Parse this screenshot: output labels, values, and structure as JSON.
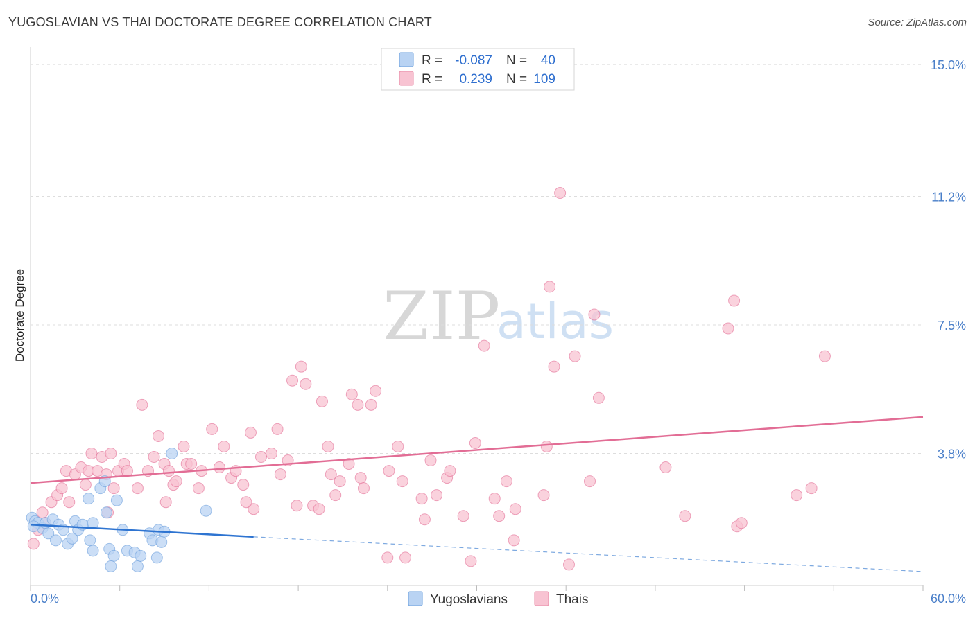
{
  "title": "YUGOSLAVIAN VS THAI DOCTORATE DEGREE CORRELATION CHART",
  "source": "Source: ZipAtlas.com",
  "watermark": {
    "zip": "ZIP",
    "atlas": "atlas"
  },
  "legend": {
    "r_label": "R =",
    "n_label": "N =",
    "entries": [
      {
        "r": "-0.087",
        "n": "40",
        "fill": "#b9d3f3",
        "stroke": "#6a9fdc"
      },
      {
        "r": "0.239",
        "n": "109",
        "fill": "#f8c3d2",
        "stroke": "#e88aa6"
      }
    ]
  },
  "bottom_legend": [
    {
      "label": "Yugoslavians",
      "fill": "#b9d3f3",
      "stroke": "#6a9fdc"
    },
    {
      "label": "Thais",
      "fill": "#f8c3d2",
      "stroke": "#e88aa6"
    }
  ],
  "chart_data": {
    "type": "scatter",
    "title": "YUGOSLAVIAN VS THAI DOCTORATE DEGREE CORRELATION CHART",
    "xlabel": "",
    "ylabel": "Doctorate Degree",
    "xlim": [
      0,
      60
    ],
    "ylim": [
      0,
      15.5
    ],
    "x_tick_labels": [
      {
        "value": 0,
        "label": "0.0%"
      },
      {
        "value": 60,
        "label": "60.0%"
      }
    ],
    "y_tick_labels": [
      {
        "value": 3.8,
        "label": "3.8%"
      },
      {
        "value": 7.5,
        "label": "7.5%"
      },
      {
        "value": 11.2,
        "label": "11.2%"
      },
      {
        "value": 15.0,
        "label": "15.0%"
      }
    ],
    "series": [
      {
        "name": "Yugoslavians",
        "color": "#6a9fdc",
        "fill": "#b9d3f3",
        "trend": {
          "x0": 0,
          "y0": 1.75,
          "x1": 15,
          "y1": 1.4,
          "dashed_to_x": 60,
          "dashed_to_y": 0.4
        },
        "points": [
          [
            0.1,
            1.95
          ],
          [
            0.3,
            1.85
          ],
          [
            0.5,
            1.8
          ],
          [
            0.8,
            1.65
          ],
          [
            1.0,
            1.8
          ],
          [
            1.2,
            1.5
          ],
          [
            1.5,
            1.9
          ],
          [
            1.7,
            1.3
          ],
          [
            1.9,
            1.75
          ],
          [
            2.2,
            1.6
          ],
          [
            2.5,
            1.2
          ],
          [
            3.0,
            1.85
          ],
          [
            3.2,
            1.6
          ],
          [
            3.5,
            1.75
          ],
          [
            4.0,
            1.3
          ],
          [
            4.2,
            1.0
          ],
          [
            3.9,
            2.5
          ],
          [
            4.2,
            1.8
          ],
          [
            4.7,
            2.8
          ],
          [
            5.0,
            3.0
          ],
          [
            5.1,
            2.1
          ],
          [
            5.3,
            1.05
          ],
          [
            5.6,
            0.85
          ],
          [
            5.4,
            0.55
          ],
          [
            5.8,
            2.45
          ],
          [
            6.2,
            1.6
          ],
          [
            6.5,
            1.0
          ],
          [
            7.0,
            0.95
          ],
          [
            7.2,
            0.55
          ],
          [
            7.4,
            0.85
          ],
          [
            8.0,
            1.5
          ],
          [
            8.2,
            1.3
          ],
          [
            8.5,
            0.8
          ],
          [
            8.6,
            1.6
          ],
          [
            8.8,
            1.25
          ],
          [
            9.0,
            1.55
          ],
          [
            9.5,
            3.8
          ],
          [
            11.8,
            2.15
          ],
          [
            0.2,
            1.7
          ],
          [
            2.8,
            1.35
          ]
        ]
      },
      {
        "name": "Thais",
        "color": "#e26d95",
        "fill": "#f8c3d2",
        "trend": {
          "x0": 0,
          "y0": 2.95,
          "x1": 60,
          "y1": 4.85
        },
        "points": [
          [
            0.2,
            1.2
          ],
          [
            0.5,
            1.6
          ],
          [
            0.8,
            2.1
          ],
          [
            1.0,
            1.8
          ],
          [
            1.4,
            2.4
          ],
          [
            1.8,
            2.6
          ],
          [
            2.1,
            2.8
          ],
          [
            2.4,
            3.3
          ],
          [
            2.6,
            2.4
          ],
          [
            3.0,
            3.2
          ],
          [
            3.4,
            3.4
          ],
          [
            3.9,
            3.3
          ],
          [
            4.1,
            3.8
          ],
          [
            4.5,
            3.3
          ],
          [
            4.8,
            3.7
          ],
          [
            5.1,
            3.2
          ],
          [
            5.4,
            3.8
          ],
          [
            5.6,
            2.8
          ],
          [
            5.9,
            3.3
          ],
          [
            6.3,
            3.5
          ],
          [
            6.5,
            3.3
          ],
          [
            7.2,
            2.8
          ],
          [
            7.5,
            5.2
          ],
          [
            7.9,
            3.3
          ],
          [
            8.3,
            3.7
          ],
          [
            8.6,
            4.3
          ],
          [
            9.0,
            3.5
          ],
          [
            9.3,
            3.3
          ],
          [
            9.6,
            2.9
          ],
          [
            9.8,
            3.0
          ],
          [
            10.3,
            4.0
          ],
          [
            10.5,
            3.5
          ],
          [
            10.8,
            3.5
          ],
          [
            11.3,
            2.8
          ],
          [
            11.5,
            3.3
          ],
          [
            12.2,
            4.5
          ],
          [
            12.7,
            3.4
          ],
          [
            13.0,
            4.0
          ],
          [
            13.5,
            3.1
          ],
          [
            13.8,
            3.3
          ],
          [
            14.3,
            2.9
          ],
          [
            14.8,
            4.4
          ],
          [
            15.0,
            2.2
          ],
          [
            15.5,
            3.7
          ],
          [
            16.2,
            3.8
          ],
          [
            16.6,
            4.5
          ],
          [
            16.8,
            3.2
          ],
          [
            17.3,
            3.6
          ],
          [
            17.6,
            5.9
          ],
          [
            17.9,
            2.3
          ],
          [
            18.2,
            6.3
          ],
          [
            18.5,
            5.8
          ],
          [
            19.0,
            2.3
          ],
          [
            19.4,
            2.2
          ],
          [
            19.6,
            5.3
          ],
          [
            20.0,
            4.0
          ],
          [
            20.2,
            3.2
          ],
          [
            20.5,
            2.6
          ],
          [
            20.8,
            3.0
          ],
          [
            21.4,
            3.5
          ],
          [
            21.6,
            5.5
          ],
          [
            22.0,
            5.2
          ],
          [
            22.2,
            3.1
          ],
          [
            22.4,
            2.8
          ],
          [
            22.9,
            5.2
          ],
          [
            23.2,
            5.6
          ],
          [
            24.1,
            3.3
          ],
          [
            24.7,
            4.0
          ],
          [
            25.0,
            3.0
          ],
          [
            25.2,
            0.8
          ],
          [
            26.3,
            2.5
          ],
          [
            26.5,
            1.9
          ],
          [
            26.9,
            3.6
          ],
          [
            27.3,
            2.6
          ],
          [
            28.0,
            3.1
          ],
          [
            28.2,
            3.3
          ],
          [
            29.1,
            2.0
          ],
          [
            29.6,
            0.7
          ],
          [
            29.9,
            4.1
          ],
          [
            30.5,
            6.9
          ],
          [
            31.2,
            2.5
          ],
          [
            31.5,
            2.0
          ],
          [
            32.0,
            3.0
          ],
          [
            32.5,
            1.3
          ],
          [
            32.6,
            2.2
          ],
          [
            34.5,
            2.6
          ],
          [
            34.7,
            4.0
          ],
          [
            34.9,
            8.6
          ],
          [
            35.2,
            6.3
          ],
          [
            35.6,
            11.3
          ],
          [
            36.2,
            0.6
          ],
          [
            36.6,
            6.6
          ],
          [
            37.6,
            3.0
          ],
          [
            37.9,
            7.8
          ],
          [
            38.2,
            5.4
          ],
          [
            42.7,
            3.4
          ],
          [
            44.0,
            2.0
          ],
          [
            46.9,
            7.4
          ],
          [
            47.3,
            8.2
          ],
          [
            47.5,
            1.7
          ],
          [
            47.8,
            1.8
          ],
          [
            51.5,
            2.6
          ],
          [
            52.5,
            2.8
          ],
          [
            53.4,
            6.6
          ],
          [
            24.0,
            0.8
          ],
          [
            14.5,
            2.4
          ],
          [
            5.2,
            2.1
          ],
          [
            3.7,
            2.9
          ],
          [
            9.1,
            2.4
          ]
        ]
      }
    ]
  }
}
